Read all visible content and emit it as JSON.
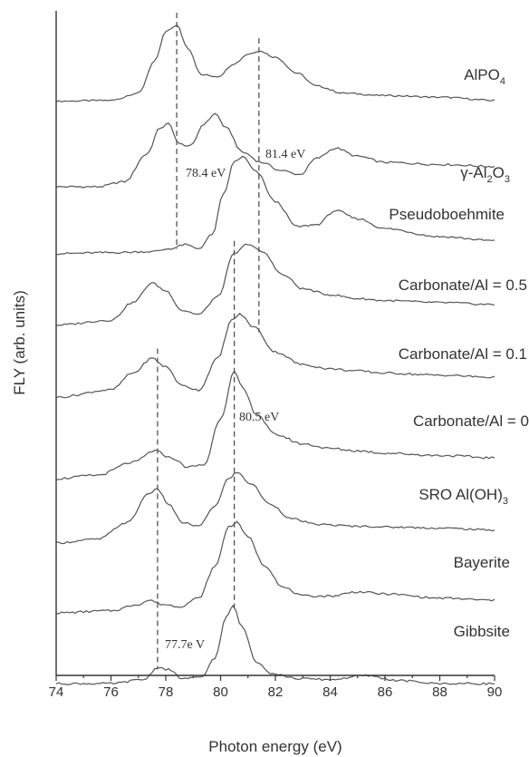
{
  "chart_data": {
    "type": "line",
    "xlabel": "Photon energy (eV)",
    "ylabel": "FLY (arb. units)",
    "xlim": [
      74,
      90
    ],
    "x_ticks": [
      "74",
      "76",
      "78",
      "80",
      "82",
      "84",
      "86",
      "88",
      "90"
    ],
    "grid": false,
    "series": [
      {
        "name": "AlPO4",
        "label_main": "AlPO",
        "label_sub": "4",
        "label_tail": "",
        "points": [
          [
            74,
            0.05
          ],
          [
            76,
            0.06
          ],
          [
            77,
            0.15
          ],
          [
            77.6,
            0.55
          ],
          [
            78.0,
            0.92
          ],
          [
            78.4,
            1.0
          ],
          [
            78.8,
            0.72
          ],
          [
            79.3,
            0.38
          ],
          [
            79.9,
            0.36
          ],
          [
            80.5,
            0.52
          ],
          [
            81.0,
            0.64
          ],
          [
            81.4,
            0.68
          ],
          [
            82.0,
            0.6
          ],
          [
            82.8,
            0.4
          ],
          [
            83.5,
            0.24
          ],
          [
            84.5,
            0.15
          ],
          [
            86,
            0.12
          ],
          [
            88,
            0.1
          ],
          [
            90,
            0.06
          ]
        ]
      },
      {
        "name": "γ-Al2O3",
        "label_main": "γ-Al",
        "label_sub": "2",
        "label_tail": "O",
        "label_sub2": "3",
        "points": [
          [
            74,
            0.0
          ],
          [
            75.5,
            0.0
          ],
          [
            76.5,
            0.05
          ],
          [
            77.3,
            0.32
          ],
          [
            77.8,
            0.58
          ],
          [
            78.1,
            0.62
          ],
          [
            78.5,
            0.42
          ],
          [
            78.9,
            0.4
          ],
          [
            79.4,
            0.62
          ],
          [
            79.8,
            0.72
          ],
          [
            80.2,
            0.58
          ],
          [
            80.8,
            0.34
          ],
          [
            81.5,
            0.24
          ],
          [
            82.2,
            0.16
          ],
          [
            82.9,
            0.12
          ],
          [
            83.5,
            0.28
          ],
          [
            84.2,
            0.38
          ],
          [
            85,
            0.3
          ],
          [
            86,
            0.24
          ],
          [
            88,
            0.22
          ],
          [
            90,
            0.2
          ]
        ]
      },
      {
        "name": "Pseudoboehmite",
        "label_main": "Pseudoboehmite",
        "label_sub": "",
        "label_tail": "",
        "points": [
          [
            74,
            0.03
          ],
          [
            76,
            0.04
          ],
          [
            77.5,
            0.05
          ],
          [
            78.2,
            0.08
          ],
          [
            78.7,
            0.12
          ],
          [
            79.2,
            0.08
          ],
          [
            79.7,
            0.22
          ],
          [
            80.1,
            0.62
          ],
          [
            80.5,
            0.95
          ],
          [
            80.8,
            1.0
          ],
          [
            81.3,
            0.85
          ],
          [
            82,
            0.55
          ],
          [
            82.8,
            0.3
          ],
          [
            83.5,
            0.32
          ],
          [
            84.2,
            0.46
          ],
          [
            85,
            0.38
          ],
          [
            86,
            0.28
          ],
          [
            88,
            0.2
          ],
          [
            90,
            0.16
          ]
        ]
      },
      {
        "name": "Carbonate/Al = 0.5",
        "label_main": "Carbonate/Al = 0.5",
        "label_sub": "",
        "label_tail": "",
        "points": [
          [
            74,
            0.05
          ],
          [
            76,
            0.1
          ],
          [
            76.8,
            0.28
          ],
          [
            77.5,
            0.48
          ],
          [
            78.0,
            0.4
          ],
          [
            78.6,
            0.2
          ],
          [
            79.2,
            0.16
          ],
          [
            79.9,
            0.34
          ],
          [
            80.5,
            0.78
          ],
          [
            81.0,
            0.88
          ],
          [
            81.5,
            0.8
          ],
          [
            82.3,
            0.56
          ],
          [
            83,
            0.42
          ],
          [
            84,
            0.36
          ],
          [
            85,
            0.32
          ],
          [
            86,
            0.3
          ],
          [
            88,
            0.28
          ],
          [
            90,
            0.26
          ]
        ]
      },
      {
        "name": "Carbonate/Al = 0.1",
        "label_main": "Carbonate/Al = 0.1",
        "label_sub": "",
        "label_tail": "",
        "points": [
          [
            74,
            0.05
          ],
          [
            76,
            0.12
          ],
          [
            76.8,
            0.28
          ],
          [
            77.5,
            0.42
          ],
          [
            78.0,
            0.34
          ],
          [
            78.6,
            0.16
          ],
          [
            79.2,
            0.12
          ],
          [
            79.9,
            0.42
          ],
          [
            80.4,
            0.78
          ],
          [
            80.7,
            0.84
          ],
          [
            81.2,
            0.72
          ],
          [
            82,
            0.48
          ],
          [
            83,
            0.36
          ],
          [
            84,
            0.32
          ],
          [
            85,
            0.3
          ],
          [
            86,
            0.28
          ],
          [
            88,
            0.26
          ],
          [
            90,
            0.24
          ]
        ]
      },
      {
        "name": "Carbonate/Al = 0",
        "label_main": "Carbonate/Al = 0",
        "label_sub": "",
        "label_tail": "",
        "points": [
          [
            74,
            0.0
          ],
          [
            75.5,
            0.03
          ],
          [
            76.8,
            0.14
          ],
          [
            77.6,
            0.24
          ],
          [
            78.2,
            0.18
          ],
          [
            78.8,
            0.1
          ],
          [
            79.4,
            0.12
          ],
          [
            80.0,
            0.52
          ],
          [
            80.5,
            0.92
          ],
          [
            80.8,
            0.78
          ],
          [
            81.3,
            0.56
          ],
          [
            82,
            0.38
          ],
          [
            83,
            0.3
          ],
          [
            84,
            0.26
          ],
          [
            85,
            0.24
          ],
          [
            86,
            0.22
          ],
          [
            88,
            0.2
          ],
          [
            90,
            0.18
          ]
        ]
      },
      {
        "name": "SRO Al(OH)3",
        "label_main": "SRO Al(OH)",
        "label_sub": "3",
        "label_tail": "",
        "points": [
          [
            74,
            0.08
          ],
          [
            75.5,
            0.12
          ],
          [
            76.6,
            0.3
          ],
          [
            77.4,
            0.62
          ],
          [
            77.7,
            0.66
          ],
          [
            78.1,
            0.5
          ],
          [
            78.6,
            0.3
          ],
          [
            79.2,
            0.26
          ],
          [
            79.8,
            0.48
          ],
          [
            80.3,
            0.78
          ],
          [
            80.6,
            0.84
          ],
          [
            81.1,
            0.72
          ],
          [
            81.8,
            0.5
          ],
          [
            82.6,
            0.34
          ],
          [
            83.5,
            0.28
          ],
          [
            85,
            0.26
          ],
          [
            86.5,
            0.25
          ],
          [
            88,
            0.24
          ],
          [
            90,
            0.22
          ]
        ]
      },
      {
        "name": "Bayerite",
        "label_main": "Bayerite",
        "label_sub": "",
        "label_tail": "",
        "points": [
          [
            74,
            0.0
          ],
          [
            76,
            0.02
          ],
          [
            77.0,
            0.08
          ],
          [
            77.4,
            0.12
          ],
          [
            77.9,
            0.08
          ],
          [
            78.5,
            0.06
          ],
          [
            79.2,
            0.14
          ],
          [
            79.8,
            0.44
          ],
          [
            80.3,
            0.82
          ],
          [
            80.6,
            0.86
          ],
          [
            81.0,
            0.72
          ],
          [
            81.6,
            0.45
          ],
          [
            82.3,
            0.24
          ],
          [
            83,
            0.16
          ],
          [
            84,
            0.16
          ],
          [
            85,
            0.2
          ],
          [
            86,
            0.18
          ],
          [
            88,
            0.14
          ],
          [
            90,
            0.12
          ]
        ]
      },
      {
        "name": "Gibbsite",
        "label_main": "Gibbsite",
        "label_sub": "",
        "label_tail": "",
        "points": [
          [
            74,
            0.0
          ],
          [
            76,
            0.0
          ],
          [
            77.2,
            0.04
          ],
          [
            77.7,
            0.16
          ],
          [
            78.1,
            0.14
          ],
          [
            78.6,
            0.05
          ],
          [
            79.3,
            0.06
          ],
          [
            79.8,
            0.26
          ],
          [
            80.2,
            0.66
          ],
          [
            80.45,
            0.78
          ],
          [
            80.8,
            0.56
          ],
          [
            81.3,
            0.22
          ],
          [
            81.9,
            0.1
          ],
          [
            82.8,
            0.05
          ],
          [
            84,
            0.04
          ],
          [
            85.3,
            0.08
          ],
          [
            86.5,
            0.03
          ],
          [
            88,
            0.0
          ],
          [
            90,
            0.0
          ]
        ]
      }
    ],
    "reference_lines": [
      {
        "x": 78.4,
        "y_top_series": 0,
        "y_bottom_series": 2
      },
      {
        "x": 81.4,
        "y_top_series": 0,
        "y_bottom_series": 4
      },
      {
        "x": 77.7,
        "y_top_series": 4,
        "y_bottom_series": 8
      },
      {
        "x": 80.5,
        "y_top_series": 3,
        "y_bottom_series": 8
      }
    ],
    "annotations": [
      {
        "text": "81.4 eV",
        "x": 81.4
      },
      {
        "text": "78.4 eV",
        "x": 78.4
      },
      {
        "text": "80.5 eV",
        "x": 80.5
      },
      {
        "text": "77.7e V",
        "x": 77.7
      }
    ]
  }
}
